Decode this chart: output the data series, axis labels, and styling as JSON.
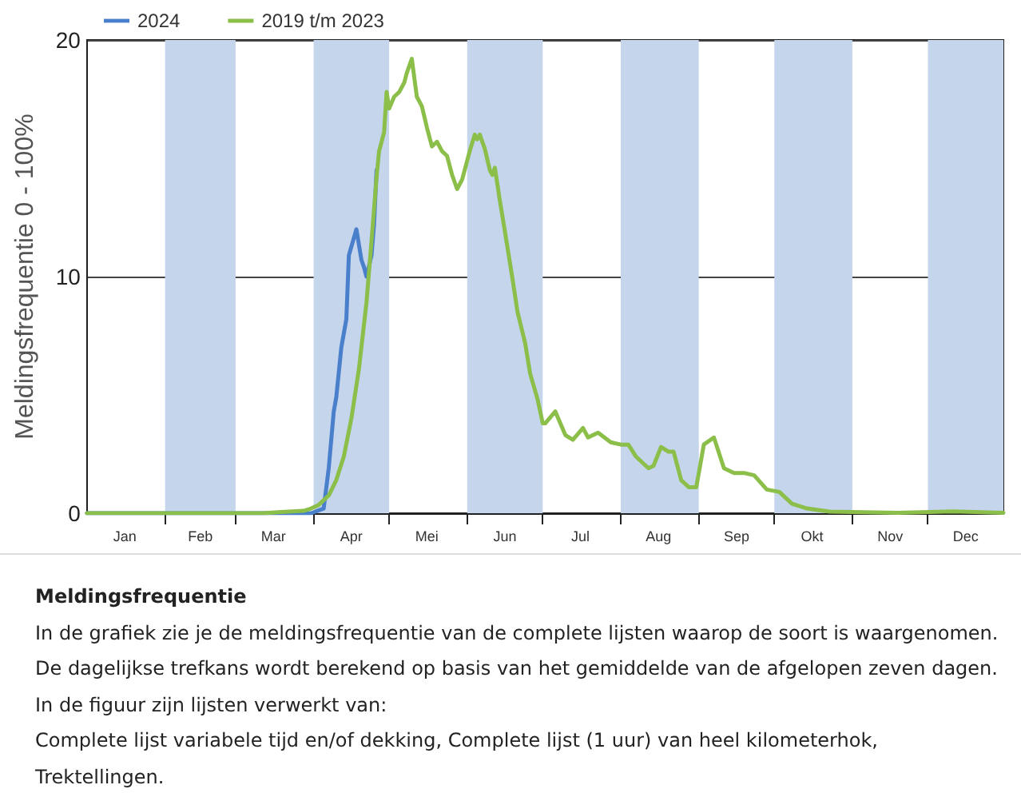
{
  "chart_data": {
    "type": "line",
    "title": "Meldingsfrequentie",
    "ylabel": "Meldingsfrequentie 0 - 100%",
    "annotations": [
      "In de grafiek zie je de meldingsfrequentie van de complete lijsten waarop de soort is waargenomen.",
      "De dagelijkse trefkans wordt berekend op basis van het gemiddelde van de afgelopen zeven dagen.",
      "In de figuur zijn lijsten verwerkt van:",
      "Complete lijst variabele tijd en/of dekking, Complete lijst (1 uur) van heel kilometerhok,",
      "Trektellingen."
    ],
    "series": [
      {
        "name": "2024",
        "color": "#4a7fcb",
        "x": [
          "--01-01",
          "--03-31",
          "--04-05",
          "--04-07",
          "--04-09",
          "--04-10",
          "--04-12",
          "--04-14",
          "--04-15",
          "--04-18",
          "--04-20",
          "--04-21",
          "--04-22",
          "--04-24",
          "--04-25",
          "--04-26"
        ],
        "values": [
          0,
          0,
          0.2,
          1.9,
          4.3,
          4.9,
          7.0,
          8.2,
          10.9,
          12.0,
          10.7,
          10.4,
          10.0,
          10.9,
          12.2,
          14.5
        ]
      },
      {
        "name": "2019 t/m 2023",
        "color": "#8bbf4a",
        "x": [
          "--01-01",
          "--03-12",
          "--03-19",
          "--03-28",
          "--03-31",
          "--04-03",
          "--04-07",
          "--04-10",
          "--04-13",
          "--04-16",
          "--04-19",
          "--04-22",
          "--04-24",
          "--04-26",
          "--04-27",
          "--04-29",
          "--04-30",
          "--05-01",
          "--05-03",
          "--05-05",
          "--05-07",
          "--05-08",
          "--05-10",
          "--05-12",
          "--05-14",
          "--05-16",
          "--05-18",
          "--05-20",
          "--05-22",
          "--05-24",
          "--05-26",
          "--05-28",
          "--05-30",
          "--06-02",
          "--06-04",
          "--06-05",
          "--06-06",
          "--06-08",
          "--06-10",
          "--06-11",
          "--06-12",
          "--06-14",
          "--06-16",
          "--06-19",
          "--06-21",
          "--06-24",
          "--06-26",
          "--06-29",
          "--07-01",
          "--07-02",
          "--07-06",
          "--07-10",
          "--07-13",
          "--07-17",
          "--07-19",
          "--07-23",
          "--07-28",
          "--08-01",
          "--08-04",
          "--08-07",
          "--08-12",
          "--08-14",
          "--08-17",
          "--08-20",
          "--08-22",
          "--08-25",
          "--08-28",
          "--08-31",
          "--09-03",
          "--09-07",
          "--09-11",
          "--09-15",
          "--09-19",
          "--09-23",
          "--09-28",
          "--10-03",
          "--10-08",
          "--10-14",
          "--10-23",
          "--11-19",
          "--12-11",
          "--12-31"
        ],
        "values": [
          0,
          0,
          0.05,
          0.1,
          0.2,
          0.35,
          0.75,
          1.4,
          2.4,
          4.0,
          6.1,
          8.9,
          11.5,
          14.2,
          15.3,
          16.1,
          17.8,
          17.1,
          17.6,
          17.8,
          18.2,
          18.6,
          19.2,
          17.6,
          17.2,
          16.3,
          15.5,
          15.7,
          15.3,
          15.1,
          14.3,
          13.7,
          14.1,
          15.3,
          16.0,
          15.8,
          16.0,
          15.4,
          14.5,
          14.3,
          14.6,
          13.2,
          11.9,
          9.9,
          8.5,
          7.2,
          5.9,
          4.8,
          3.8,
          3.8,
          4.3,
          3.3,
          3.1,
          3.6,
          3.2,
          3.4,
          3.0,
          2.9,
          2.9,
          2.4,
          1.9,
          2.0,
          2.8,
          2.6,
          2.6,
          1.4,
          1.1,
          1.1,
          2.9,
          3.2,
          1.9,
          1.7,
          1.7,
          1.6,
          1.0,
          0.9,
          0.4,
          0.2,
          0.07,
          0.02,
          0.08,
          0.02
        ]
      }
    ],
    "xlim": [
      "--01-01",
      "--12-31"
    ],
    "xticks": [
      {
        "value": "--01-16",
        "label": "Jan"
      },
      {
        "value": "--02-01",
        "label": null
      },
      {
        "value": "--02-15",
        "label": "Feb"
      },
      {
        "value": "--03-01",
        "label": null
      },
      {
        "value": "--03-16",
        "label": "Mar"
      },
      {
        "value": "--04-01",
        "label": null
      },
      {
        "value": "--04-16",
        "label": "Apr"
      },
      {
        "value": "--05-01",
        "label": null
      },
      {
        "value": "--05-16",
        "label": "Mei"
      },
      {
        "value": "--06-01",
        "label": null
      },
      {
        "value": "--06-16",
        "label": "Jun"
      },
      {
        "value": "--07-01",
        "label": null
      },
      {
        "value": "--07-16",
        "label": "Jul"
      },
      {
        "value": "--08-01",
        "label": null
      },
      {
        "value": "--08-16",
        "label": "Aug"
      },
      {
        "value": "--09-01",
        "label": null
      },
      {
        "value": "--09-16",
        "label": "Sep"
      },
      {
        "value": "--10-01",
        "label": null
      },
      {
        "value": "--10-16",
        "label": "Okt"
      },
      {
        "value": "--11-01",
        "label": null
      },
      {
        "value": "--11-16",
        "label": "Nov"
      },
      {
        "value": "--12-01",
        "label": null
      },
      {
        "value": "--12-16",
        "label": "Dec"
      }
    ],
    "ylim": [
      0,
      20
    ],
    "yticks": [
      0,
      10,
      20
    ],
    "bands": [
      {
        "axis": "x",
        "from": "--02-01",
        "to": "--03-01",
        "color": "#c5d6ec"
      },
      {
        "axis": "x",
        "from": "--04-01",
        "to": "--05-01",
        "color": "#c5d6ec"
      },
      {
        "axis": "x",
        "from": "--06-01",
        "to": "--07-01",
        "color": "#c5d6ec"
      },
      {
        "axis": "x",
        "from": "--08-01",
        "to": "--09-01",
        "color": "#c5d6ec"
      },
      {
        "axis": "x",
        "from": "--10-01",
        "to": "--11-01",
        "color": "#c5d6ec"
      },
      {
        "axis": "x",
        "from": "--12-01",
        "to": "--12-31",
        "color": "#c5d6ec"
      }
    ],
    "grid": "y",
    "legend": "top left",
    "marker": "none",
    "line_style": "solid"
  }
}
